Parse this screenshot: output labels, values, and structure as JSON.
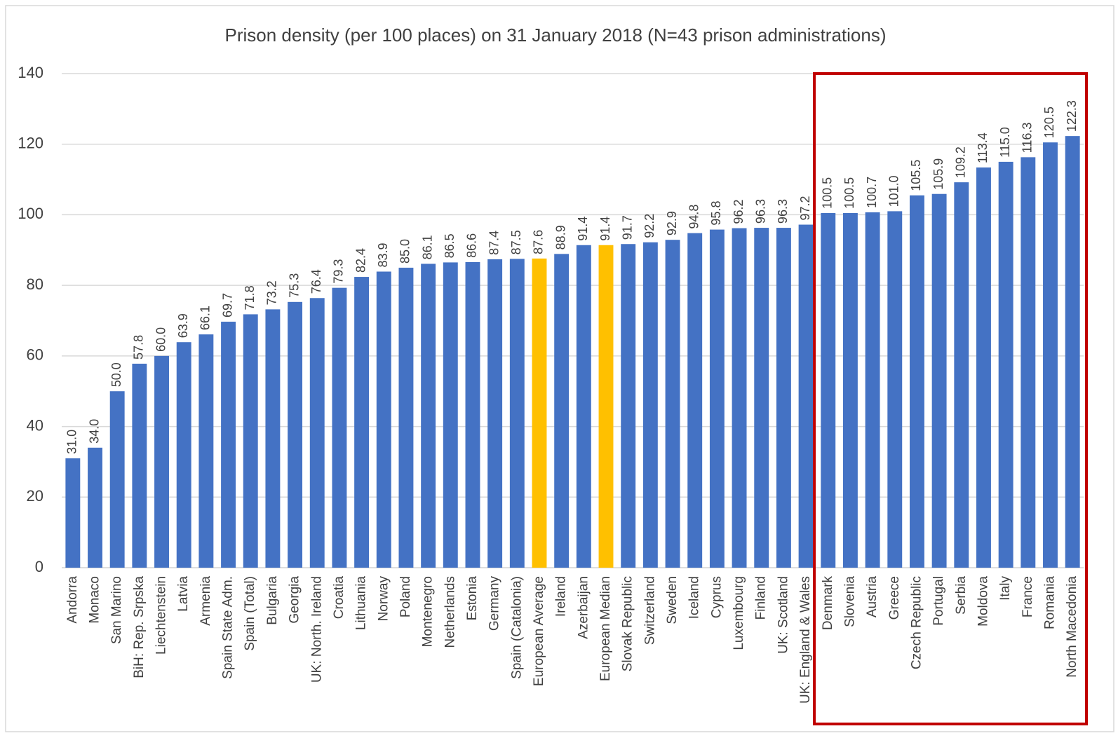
{
  "chart_data": {
    "type": "bar",
    "title": "Prison density (per 100 places) on 31 January 2018 (N=43 prison administrations)",
    "categories": [
      "Andorra",
      "Monaco",
      "San Marino",
      "BiH: Rep. Srpska",
      "Liechtenstein",
      "Latvia",
      "Armenia",
      "Spain State Adm.",
      "Spain (Total)",
      "Bulgaria",
      "Georgia",
      "UK: North. Ireland",
      "Croatia",
      "Lithuania",
      "Norway",
      "Poland",
      "Montenegro",
      "Netherlands",
      "Estonia",
      "Germany",
      "Spain (Catalonia)",
      "European Average",
      "Ireland",
      "Azerbaijan",
      "European Median",
      "Slovak Republic",
      "Switzerland",
      "Sweden",
      "Iceland",
      "Cyprus",
      "Luxembourg",
      "Finland",
      "UK: Scotland",
      "UK: England & Wales",
      "Denmark",
      "Slovenia",
      "Austria",
      "Greece",
      "Czech Republic",
      "Portugal",
      "Serbia",
      "Moldova",
      "Italy",
      "France",
      "Romania",
      "North Macedonia"
    ],
    "values": [
      31.0,
      34.0,
      50.0,
      57.8,
      60.0,
      63.9,
      66.1,
      69.7,
      71.8,
      73.2,
      75.3,
      76.4,
      79.3,
      82.4,
      83.9,
      85.0,
      86.1,
      86.5,
      86.6,
      87.4,
      87.5,
      87.6,
      88.9,
      91.4,
      91.4,
      91.7,
      92.2,
      92.9,
      94.8,
      95.8,
      96.2,
      96.3,
      96.3,
      97.2,
      100.5,
      100.5,
      100.7,
      101.0,
      105.5,
      105.9,
      109.2,
      113.4,
      115.0,
      116.3,
      120.5,
      122.3
    ],
    "value_labels": [
      "31.0",
      "34.0",
      "50.0",
      "57.8",
      "60.0",
      "63.9",
      "66.1",
      "69.7",
      "71.8",
      "73.2",
      "75.3",
      "76.4",
      "79.3",
      "82.4",
      "83.9",
      "85.0",
      "86.1",
      "86.5",
      "86.6",
      "87.4",
      "87.5",
      "87.6",
      "88.9",
      "91.4",
      "91.4",
      "91.7",
      "92.2",
      "92.9",
      "94.8",
      "95.8",
      "96.2",
      "96.3",
      "96.3",
      "97.2",
      "100.5",
      "100.5",
      "100.7",
      "101.0",
      "105.5",
      "105.9",
      "109.2",
      "113.4",
      "115.0",
      "116.3",
      "120.5",
      "122.3"
    ],
    "colors": [
      "#4472c4",
      "#4472c4",
      "#4472c4",
      "#4472c4",
      "#4472c4",
      "#4472c4",
      "#4472c4",
      "#4472c4",
      "#4472c4",
      "#4472c4",
      "#4472c4",
      "#4472c4",
      "#4472c4",
      "#4472c4",
      "#4472c4",
      "#4472c4",
      "#4472c4",
      "#4472c4",
      "#4472c4",
      "#4472c4",
      "#4472c4",
      "#ffc000",
      "#4472c4",
      "#4472c4",
      "#ffc000",
      "#4472c4",
      "#4472c4",
      "#4472c4",
      "#4472c4",
      "#4472c4",
      "#4472c4",
      "#4472c4",
      "#4472c4",
      "#4472c4",
      "#4472c4",
      "#4472c4",
      "#4472c4",
      "#4472c4",
      "#4472c4",
      "#4472c4",
      "#4472c4",
      "#4472c4",
      "#4472c4",
      "#4472c4",
      "#4472c4",
      "#4472c4"
    ],
    "ylim": [
      0,
      140
    ],
    "yticks": [
      0,
      20,
      40,
      60,
      80,
      100,
      120,
      140
    ],
    "grid": true
  }
}
